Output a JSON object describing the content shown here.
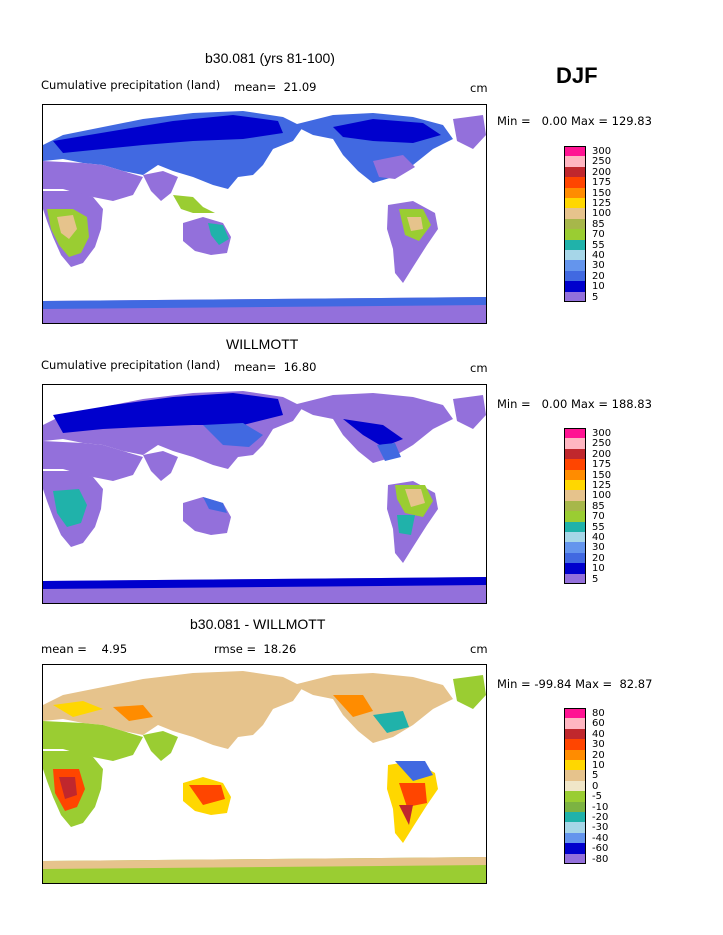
{
  "season": "DJF",
  "panels": [
    {
      "title": "b30.081 (yrs 81-100)",
      "subtitle": "Cumulative precipitation (land)",
      "stat_label": "mean=",
      "stat_value": "21.09",
      "units": "cm",
      "min_label": "Min =",
      "min_value": "0.00",
      "max_label": "Max =",
      "max_value": "129.83",
      "kind": "abs"
    },
    {
      "title": "WILLMOTT",
      "subtitle": "Cumulative precipitation (land)",
      "stat_label": "mean=",
      "stat_value": "16.80",
      "units": "cm",
      "min_label": "Min =",
      "min_value": "0.00",
      "max_label": "Max =",
      "max_value": "188.83",
      "kind": "abs"
    },
    {
      "title": "b30.081 - WILLMOTT",
      "mean_label": "mean =",
      "mean_value": "4.95",
      "rmse_label": "rmse =",
      "rmse_value": "18.26",
      "units": "cm",
      "min_label": "Min =",
      "min_value": "-99.84",
      "max_label": "Max =",
      "max_value": "82.87",
      "kind": "diff"
    }
  ],
  "colorbars": {
    "abs": {
      "labels": [
        "300",
        "250",
        "200",
        "175",
        "150",
        "125",
        "100",
        "85",
        "70",
        "55",
        "40",
        "30",
        "20",
        "10",
        "5"
      ],
      "colors": [
        "#ff1493",
        "#ffb6c1",
        "#c0272d",
        "#ff4500",
        "#ff8c00",
        "#ffd700",
        "#e6c38c",
        "#a7b74a",
        "#9acd32",
        "#20b2aa",
        "#a6d6e8",
        "#6495ed",
        "#4169e1",
        "#0000cd",
        "#9370db"
      ]
    },
    "diff": {
      "labels": [
        "80",
        "60",
        "40",
        "30",
        "20",
        "10",
        "5",
        "0",
        "-5",
        "-10",
        "-20",
        "-30",
        "-40",
        "-60",
        "-80"
      ],
      "colors": [
        "#ff1493",
        "#ffb6c1",
        "#c0272d",
        "#ff4500",
        "#ff8c00",
        "#ffd700",
        "#e6c38c",
        "#f0e6c8",
        "#9acd32",
        "#7cb342",
        "#20b2aa",
        "#a6d6e8",
        "#6495ed",
        "#0000cd",
        "#9370db"
      ]
    }
  }
}
